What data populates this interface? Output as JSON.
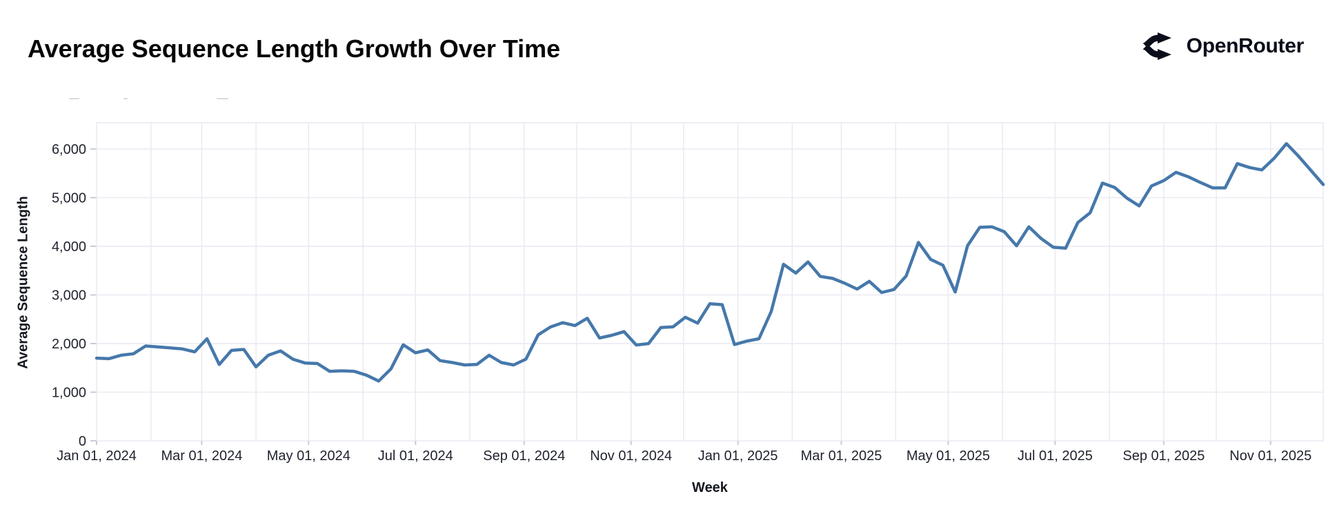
{
  "header": {
    "title": "Average Sequence Length Growth Over Time",
    "brand": "OpenRouter"
  },
  "chart_data": {
    "type": "line",
    "title": "Average Sequence Length Growth Over Time",
    "xlabel": "Week",
    "ylabel": "Average Sequence Length",
    "x_range": [
      "2024-01-01",
      "2025-12-01"
    ],
    "ylim": [
      0,
      6000
    ],
    "grid": true,
    "legend": "none",
    "line_color": "#4678ab",
    "grid_color": "#e9eaf2",
    "tick_color": "#c9ccd6",
    "x_ticks": [
      {
        "date": "2024-01-01",
        "label": "Jan 01, 2024"
      },
      {
        "date": "2024-03-01",
        "label": "Mar 01, 2024"
      },
      {
        "date": "2024-05-01",
        "label": "May 01, 2024"
      },
      {
        "date": "2024-07-01",
        "label": "Jul 01, 2024"
      },
      {
        "date": "2024-09-01",
        "label": "Sep 01, 2024"
      },
      {
        "date": "2024-11-01",
        "label": "Nov 01, 2024"
      },
      {
        "date": "2025-01-01",
        "label": "Jan 01, 2025"
      },
      {
        "date": "2025-03-01",
        "label": "Mar 01, 2025"
      },
      {
        "date": "2025-05-01",
        "label": "May 01, 2025"
      },
      {
        "date": "2025-07-01",
        "label": "Jul 01, 2025"
      },
      {
        "date": "2025-09-01",
        "label": "Sep 01, 2025"
      },
      {
        "date": "2025-11-01",
        "label": "Nov 01, 2025"
      }
    ],
    "y_ticks": [
      {
        "value": 0,
        "label": "0"
      },
      {
        "value": 1000,
        "label": "1,000"
      },
      {
        "value": 2000,
        "label": "2,000"
      },
      {
        "value": 3000,
        "label": "3,000"
      },
      {
        "value": 4000,
        "label": "4,000"
      },
      {
        "value": 5000,
        "label": "5,000"
      },
      {
        "value": 6000,
        "label": "6,000"
      }
    ],
    "series": [
      {
        "name": "Average Sequence Length",
        "color": "#4678ab",
        "points": [
          [
            "2024-01-01",
            1700
          ],
          [
            "2024-01-08",
            1690
          ],
          [
            "2024-01-15",
            1760
          ],
          [
            "2024-01-22",
            1790
          ],
          [
            "2024-01-29",
            1950
          ],
          [
            "2024-02-05",
            1930
          ],
          [
            "2024-02-12",
            1910
          ],
          [
            "2024-02-19",
            1890
          ],
          [
            "2024-02-26",
            1830
          ],
          [
            "2024-03-04",
            2100
          ],
          [
            "2024-03-11",
            1570
          ],
          [
            "2024-03-18",
            1860
          ],
          [
            "2024-03-25",
            1880
          ],
          [
            "2024-04-01",
            1520
          ],
          [
            "2024-04-08",
            1760
          ],
          [
            "2024-04-15",
            1850
          ],
          [
            "2024-04-22",
            1680
          ],
          [
            "2024-04-29",
            1600
          ],
          [
            "2024-05-06",
            1590
          ],
          [
            "2024-05-13",
            1430
          ],
          [
            "2024-05-20",
            1440
          ],
          [
            "2024-05-27",
            1430
          ],
          [
            "2024-06-03",
            1350
          ],
          [
            "2024-06-10",
            1230
          ],
          [
            "2024-06-17",
            1480
          ],
          [
            "2024-06-24",
            1975
          ],
          [
            "2024-07-01",
            1810
          ],
          [
            "2024-07-08",
            1870
          ],
          [
            "2024-07-15",
            1650
          ],
          [
            "2024-07-22",
            1610
          ],
          [
            "2024-07-29",
            1560
          ],
          [
            "2024-08-05",
            1570
          ],
          [
            "2024-08-12",
            1760
          ],
          [
            "2024-08-19",
            1610
          ],
          [
            "2024-08-26",
            1560
          ],
          [
            "2024-09-02",
            1680
          ],
          [
            "2024-09-09",
            2180
          ],
          [
            "2024-09-16",
            2340
          ],
          [
            "2024-09-23",
            2430
          ],
          [
            "2024-09-30",
            2370
          ],
          [
            "2024-10-07",
            2520
          ],
          [
            "2024-10-14",
            2115
          ],
          [
            "2024-10-21",
            2170
          ],
          [
            "2024-10-28",
            2245
          ],
          [
            "2024-11-04",
            1970
          ],
          [
            "2024-11-11",
            2000
          ],
          [
            "2024-11-18",
            2330
          ],
          [
            "2024-11-25",
            2345
          ],
          [
            "2024-12-02",
            2540
          ],
          [
            "2024-12-09",
            2420
          ],
          [
            "2024-12-16",
            2820
          ],
          [
            "2024-12-23",
            2800
          ],
          [
            "2024-12-30",
            1980
          ],
          [
            "2025-01-06",
            2050
          ],
          [
            "2025-01-13",
            2100
          ],
          [
            "2025-01-20",
            2660
          ],
          [
            "2025-01-27",
            3630
          ],
          [
            "2025-02-03",
            3450
          ],
          [
            "2025-02-10",
            3680
          ],
          [
            "2025-02-17",
            3380
          ],
          [
            "2025-02-24",
            3340
          ],
          [
            "2025-03-03",
            3240
          ],
          [
            "2025-03-10",
            3120
          ],
          [
            "2025-03-17",
            3280
          ],
          [
            "2025-03-24",
            3050
          ],
          [
            "2025-03-31",
            3110
          ],
          [
            "2025-04-07",
            3390
          ],
          [
            "2025-04-14",
            4080
          ],
          [
            "2025-04-21",
            3730
          ],
          [
            "2025-04-28",
            3610
          ],
          [
            "2025-05-05",
            3060
          ],
          [
            "2025-05-12",
            4010
          ],
          [
            "2025-05-19",
            4390
          ],
          [
            "2025-05-26",
            4400
          ],
          [
            "2025-06-02",
            4300
          ],
          [
            "2025-06-09",
            4010
          ],
          [
            "2025-06-16",
            4400
          ],
          [
            "2025-06-23",
            4160
          ],
          [
            "2025-06-30",
            3980
          ],
          [
            "2025-07-07",
            3960
          ],
          [
            "2025-07-14",
            4490
          ],
          [
            "2025-07-21",
            4690
          ],
          [
            "2025-07-28",
            5300
          ],
          [
            "2025-08-04",
            5210
          ],
          [
            "2025-08-11",
            4990
          ],
          [
            "2025-08-18",
            4830
          ],
          [
            "2025-08-25",
            5240
          ],
          [
            "2025-09-01",
            5350
          ],
          [
            "2025-09-08",
            5520
          ],
          [
            "2025-09-15",
            5430
          ],
          [
            "2025-09-22",
            5310
          ],
          [
            "2025-09-29",
            5200
          ],
          [
            "2025-10-06",
            5200
          ],
          [
            "2025-10-13",
            5700
          ],
          [
            "2025-10-20",
            5620
          ],
          [
            "2025-10-27",
            5570
          ],
          [
            "2025-11-03",
            5810
          ],
          [
            "2025-11-10",
            6110
          ],
          [
            "2025-11-17",
            5850
          ],
          [
            "2025-11-24",
            5560
          ],
          [
            "2025-12-01",
            5270
          ]
        ]
      }
    ]
  }
}
